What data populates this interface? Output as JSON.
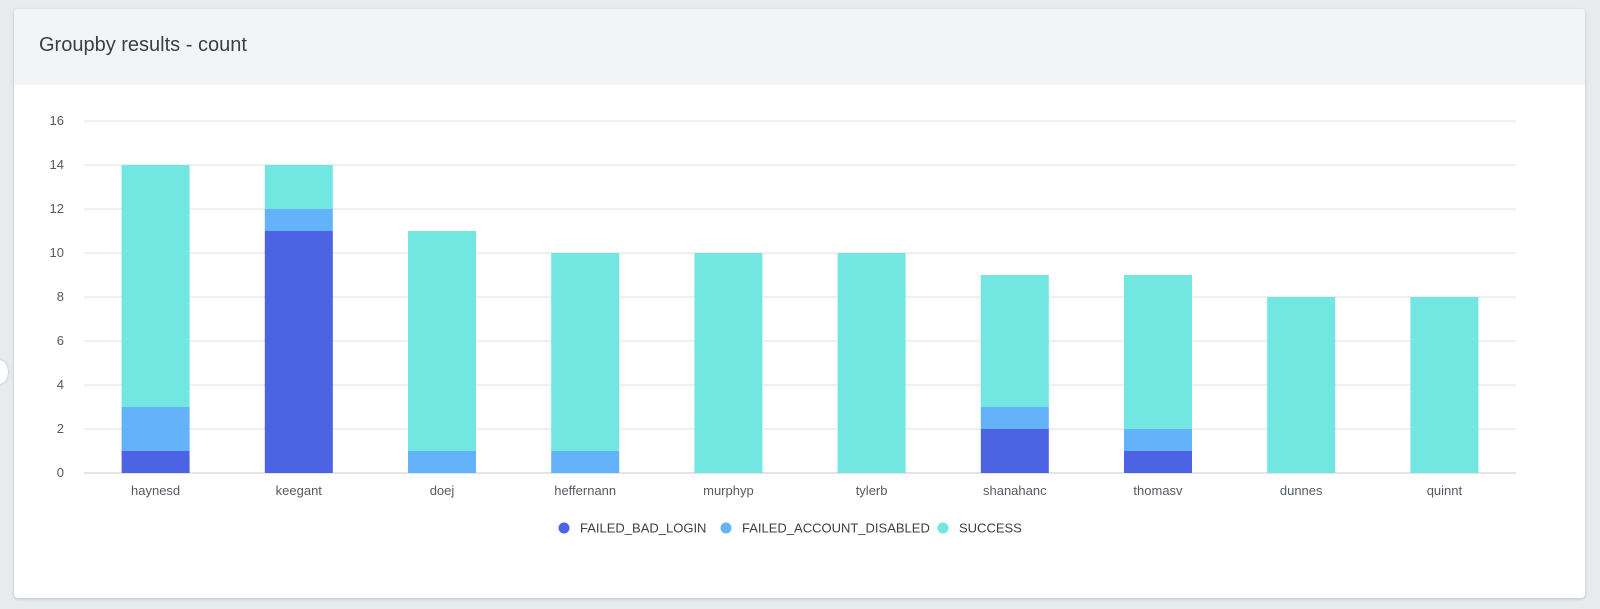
{
  "card": {
    "title": "Groupby results - count"
  },
  "chart_data": {
    "type": "bar",
    "stacked": true,
    "title": "",
    "xlabel": "",
    "ylabel": "",
    "ylim": [
      0,
      16
    ],
    "yticks": [
      0,
      2,
      4,
      6,
      8,
      10,
      12,
      14,
      16
    ],
    "grid": true,
    "legend_position": "bottom-center",
    "categories": [
      "haynesd",
      "keegant",
      "doej",
      "heffernann",
      "murphyp",
      "tylerb",
      "shanahanc",
      "thomasv",
      "dunnes",
      "quinnt"
    ],
    "series": [
      {
        "name": "FAILED_BAD_LOGIN",
        "color": "#4c64e4",
        "values": [
          1,
          11,
          0,
          0,
          0,
          0,
          2,
          1,
          0,
          0
        ]
      },
      {
        "name": "FAILED_ACCOUNT_DISABLED",
        "color": "#64b2fa",
        "values": [
          2,
          1,
          1,
          1,
          0,
          0,
          1,
          1,
          0,
          0
        ]
      },
      {
        "name": "SUCCESS",
        "color": "#72e6e1",
        "values": [
          11,
          2,
          10,
          9,
          10,
          10,
          6,
          7,
          8,
          8
        ]
      }
    ]
  }
}
